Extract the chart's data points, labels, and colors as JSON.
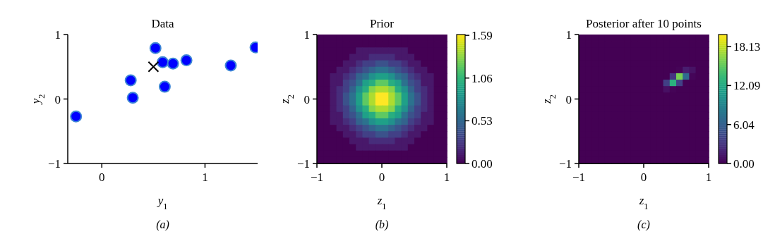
{
  "chart_data": [
    {
      "type": "scatter",
      "title": "Data",
      "xlabel": "y$_{1}$",
      "ylabel": "y$_{2}$",
      "xlim": [
        -0.33,
        1.51
      ],
      "ylim": [
        -1,
        1
      ],
      "xticks": [
        0,
        1
      ],
      "yticks": [
        -1,
        0,
        1
      ],
      "annotations": [
        "(a)"
      ],
      "series": [
        {
          "color": "#0000ff",
          "marker": "circle",
          "x": [
            -0.25,
            0.28,
            0.3,
            0.52,
            0.59,
            0.61,
            0.69,
            0.82,
            1.25,
            1.49
          ],
          "values": [
            -0.27,
            0.29,
            0.02,
            0.79,
            0.57,
            0.19,
            0.55,
            0.6,
            0.52,
            0.8
          ]
        },
        {
          "color": "#000000",
          "marker": "cross",
          "x": [
            0.5
          ],
          "values": [
            0.5
          ]
        }
      ]
    },
    {
      "type": "heatmap",
      "title": "Prior",
      "xlabel": "z$_{1}$",
      "ylabel": "z$_{2}$",
      "xlim": [
        -1,
        1
      ],
      "ylim": [
        -1,
        1
      ],
      "xticks": [
        -1,
        0,
        1
      ],
      "yticks": [
        -1,
        0,
        1
      ],
      "clim": [
        0,
        1.6
      ],
      "cticks": [
        {
          "value": 0,
          "label": "0.00"
        },
        0.53,
        1.06,
        1.59
      ],
      "annotations": [
        "(b)"
      ],
      "cells": [
        [
          0,
          0,
          0,
          0,
          0,
          0,
          0,
          0,
          0,
          0,
          0,
          0,
          0,
          0,
          0,
          0,
          0,
          0,
          0,
          0
        ],
        [
          0,
          0,
          0,
          0,
          0,
          0,
          0,
          0,
          0,
          0,
          0,
          0,
          0,
          0,
          0,
          0,
          0,
          0,
          0,
          0
        ],
        [
          0,
          0,
          0,
          0,
          0,
          0,
          0.1,
          0.1,
          0.1,
          0.1,
          0.1,
          0.1,
          0.1,
          0.1,
          0,
          0,
          0,
          0,
          0,
          0
        ],
        [
          0,
          0,
          0,
          0,
          0,
          0.1,
          0.1,
          0.1,
          0.2,
          0.2,
          0.2,
          0.2,
          0.1,
          0.1,
          0.1,
          0,
          0,
          0,
          0,
          0
        ],
        [
          0,
          0,
          0,
          0,
          0.1,
          0.1,
          0.2,
          0.3,
          0.3,
          0.4,
          0.4,
          0.3,
          0.3,
          0.2,
          0.1,
          0.1,
          0,
          0,
          0,
          0
        ],
        [
          0,
          0,
          0,
          0.1,
          0.1,
          0.2,
          0.3,
          0.4,
          0.5,
          0.6,
          0.6,
          0.5,
          0.4,
          0.3,
          0.2,
          0.1,
          0.1,
          0,
          0,
          0
        ],
        [
          0,
          0,
          0.1,
          0.1,
          0.2,
          0.3,
          0.5,
          0.6,
          0.8,
          0.9,
          0.9,
          0.8,
          0.6,
          0.5,
          0.3,
          0.2,
          0.1,
          0.1,
          0,
          0
        ],
        [
          0,
          0,
          0.1,
          0.1,
          0.3,
          0.4,
          0.6,
          0.9,
          1.0,
          1.2,
          1.2,
          1.0,
          0.9,
          0.6,
          0.4,
          0.3,
          0.1,
          0.1,
          0,
          0
        ],
        [
          0,
          0,
          0.1,
          0.2,
          0.3,
          0.5,
          0.8,
          1.0,
          1.3,
          1.4,
          1.4,
          1.3,
          1.0,
          0.8,
          0.5,
          0.3,
          0.2,
          0.1,
          0,
          0
        ],
        [
          0,
          0,
          0.1,
          0.2,
          0.4,
          0.6,
          0.9,
          1.2,
          1.4,
          1.6,
          1.6,
          1.4,
          1.2,
          0.9,
          0.6,
          0.4,
          0.2,
          0.1,
          0,
          0
        ],
        [
          0,
          0,
          0.1,
          0.2,
          0.4,
          0.6,
          0.9,
          1.2,
          1.4,
          1.6,
          1.6,
          1.4,
          1.2,
          0.9,
          0.6,
          0.4,
          0.2,
          0.1,
          0,
          0
        ],
        [
          0,
          0,
          0.1,
          0.2,
          0.3,
          0.5,
          0.8,
          1.0,
          1.3,
          1.4,
          1.4,
          1.3,
          1.0,
          0.8,
          0.5,
          0.3,
          0.2,
          0.1,
          0,
          0
        ],
        [
          0,
          0,
          0.1,
          0.1,
          0.3,
          0.4,
          0.6,
          0.9,
          1.0,
          1.2,
          1.2,
          1.0,
          0.9,
          0.6,
          0.4,
          0.3,
          0.1,
          0.1,
          0,
          0
        ],
        [
          0,
          0,
          0.1,
          0.1,
          0.2,
          0.3,
          0.5,
          0.6,
          0.8,
          0.9,
          0.9,
          0.8,
          0.6,
          0.5,
          0.3,
          0.2,
          0.1,
          0.1,
          0,
          0
        ],
        [
          0,
          0,
          0,
          0.1,
          0.1,
          0.2,
          0.3,
          0.4,
          0.5,
          0.6,
          0.6,
          0.5,
          0.4,
          0.3,
          0.2,
          0.1,
          0.1,
          0,
          0,
          0
        ],
        [
          0,
          0,
          0,
          0,
          0.1,
          0.1,
          0.2,
          0.3,
          0.3,
          0.4,
          0.4,
          0.3,
          0.3,
          0.2,
          0.1,
          0.1,
          0,
          0,
          0,
          0
        ],
        [
          0,
          0,
          0,
          0,
          0,
          0.1,
          0.1,
          0.1,
          0.2,
          0.2,
          0.2,
          0.2,
          0.1,
          0.1,
          0.1,
          0,
          0,
          0,
          0,
          0
        ],
        [
          0,
          0,
          0,
          0,
          0,
          0,
          0.1,
          0.1,
          0.1,
          0.1,
          0.1,
          0.1,
          0.1,
          0.1,
          0,
          0,
          0,
          0,
          0,
          0
        ],
        [
          0,
          0,
          0,
          0,
          0,
          0,
          0,
          0,
          0,
          0,
          0,
          0,
          0,
          0,
          0,
          0,
          0,
          0,
          0,
          0
        ],
        [
          0,
          0,
          0,
          0,
          0,
          0,
          0,
          0,
          0,
          0,
          0,
          0,
          0,
          0,
          0,
          0,
          0,
          0,
          0,
          0
        ]
      ]
    },
    {
      "type": "heatmap",
      "title": "Posterior after 10 points",
      "xlabel": "z$_{1}$",
      "ylabel": "z$_{2}$",
      "xlim": [
        -1,
        1
      ],
      "ylim": [
        -1,
        1
      ],
      "xticks": [
        -1,
        0,
        1
      ],
      "yticks": [
        -1,
        0,
        1
      ],
      "clim": [
        0,
        20
      ],
      "cticks": [
        {
          "value": 0,
          "label": "0.00"
        },
        6.04,
        12.09,
        18.13
      ],
      "annotations": [
        "(c)"
      ],
      "cells": [
        [
          0,
          0,
          0,
          0,
          0,
          0,
          0,
          0,
          0,
          0,
          0,
          0,
          0,
          0,
          0,
          0,
          0,
          0,
          0,
          0
        ],
        [
          0,
          0,
          0,
          0,
          0,
          0,
          0,
          0,
          0,
          0,
          0,
          0,
          0,
          0,
          0,
          0,
          0,
          0,
          0,
          0
        ],
        [
          0,
          0,
          0,
          0,
          0,
          0,
          0,
          0,
          0,
          0,
          0,
          0,
          0,
          0,
          0,
          0,
          0,
          0,
          0,
          0
        ],
        [
          0,
          0,
          0,
          0,
          0,
          0,
          0,
          0,
          0,
          0,
          0,
          0,
          0,
          0,
          0,
          0,
          0,
          0,
          0,
          0
        ],
        [
          0,
          0,
          0,
          0,
          0,
          0,
          0,
          0,
          0,
          0,
          0,
          0,
          0,
          0,
          0,
          0,
          0,
          0,
          0,
          0
        ],
        [
          0,
          0,
          0,
          0,
          0,
          0,
          0,
          0,
          0,
          0,
          0,
          0,
          0,
          0,
          0,
          0.2,
          1.6,
          1.0,
          0,
          0
        ],
        [
          0,
          0,
          0,
          0,
          0,
          0,
          0,
          0,
          0,
          0,
          0,
          0,
          0,
          0,
          3.1,
          15.9,
          6.9,
          0.3,
          0,
          0
        ],
        [
          0,
          0,
          0,
          0,
          0,
          0,
          0,
          0,
          0,
          0,
          0,
          0,
          0,
          3.7,
          12.8,
          3.9,
          0,
          0,
          0,
          0
        ],
        [
          0,
          0,
          0,
          0,
          0,
          0,
          0,
          0,
          0,
          0,
          0,
          0,
          0,
          0.8,
          0.2,
          0,
          0,
          0,
          0,
          0
        ],
        [
          0,
          0,
          0,
          0,
          0,
          0,
          0,
          0,
          0,
          0,
          0,
          0,
          0,
          0,
          0,
          0,
          0,
          0,
          0,
          0
        ],
        [
          0,
          0,
          0,
          0,
          0,
          0,
          0,
          0,
          0,
          0,
          0,
          0,
          0,
          0,
          0,
          0,
          0,
          0,
          0,
          0
        ],
        [
          0,
          0,
          0,
          0,
          0,
          0,
          0,
          0,
          0,
          0,
          0,
          0,
          0,
          0,
          0,
          0,
          0,
          0,
          0,
          0
        ],
        [
          0,
          0,
          0,
          0,
          0,
          0,
          0,
          0,
          0,
          0,
          0,
          0,
          0,
          0,
          0,
          0,
          0,
          0,
          0,
          0
        ],
        [
          0,
          0,
          0,
          0,
          0,
          0,
          0,
          0,
          0,
          0,
          0,
          0,
          0,
          0,
          0,
          0,
          0,
          0,
          0,
          0
        ],
        [
          0,
          0,
          0,
          0,
          0,
          0,
          0,
          0,
          0,
          0,
          0,
          0,
          0,
          0,
          0,
          0,
          0,
          0,
          0,
          0
        ],
        [
          0,
          0,
          0,
          0,
          0,
          0,
          0,
          0,
          0,
          0,
          0,
          0,
          0,
          0,
          0,
          0,
          0,
          0,
          0,
          0
        ],
        [
          0,
          0,
          0,
          0,
          0,
          0,
          0,
          0,
          0,
          0,
          0,
          0,
          0,
          0,
          0,
          0,
          0,
          0,
          0,
          0
        ],
        [
          0,
          0,
          0,
          0,
          0,
          0,
          0,
          0,
          0,
          0,
          0,
          0,
          0,
          0,
          0,
          0,
          0,
          0,
          0,
          0
        ],
        [
          0,
          0,
          0,
          0,
          0,
          0,
          0,
          0,
          0,
          0,
          0,
          0,
          0,
          0,
          0,
          0,
          0,
          0,
          0,
          0
        ],
        [
          0,
          0,
          0,
          0,
          0,
          0,
          0,
          0,
          0,
          0,
          0,
          0,
          0,
          0,
          0,
          0,
          0,
          0,
          0,
          0
        ]
      ]
    }
  ]
}
